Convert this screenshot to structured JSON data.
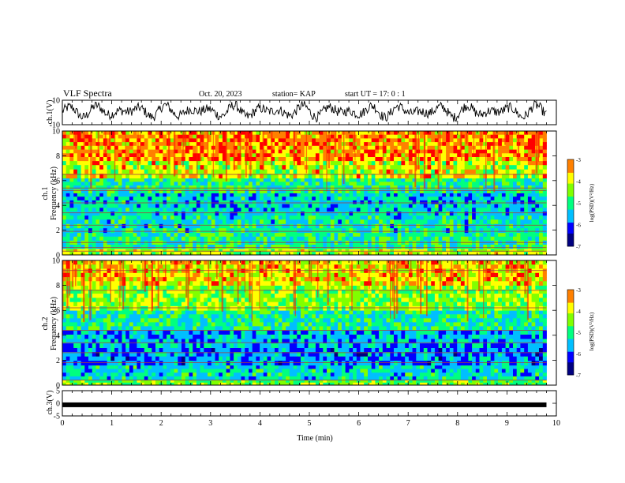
{
  "header": {
    "title": "VLF Spectra",
    "date": "Oct. 20, 2023",
    "station": "station= KAP",
    "start": "start  UT =   17: 0  : 1"
  },
  "colors": {
    "colormap": [
      "#000080",
      "#0000ff",
      "#00bfff",
      "#00ff80",
      "#80ff00",
      "#ffff00",
      "#ff8000",
      "#ff0000",
      "#ffffff"
    ]
  },
  "chart_data": [
    {
      "type": "line",
      "panel": "ch1",
      "ylabel": "ch.1(V)",
      "ylim": [
        -10,
        10
      ],
      "y_ticks": [
        "10",
        "-10"
      ],
      "xlim": [
        0,
        10
      ],
      "x_end": 9.8,
      "baseline": 0,
      "amplitude": 9,
      "series": [
        {
          "values": []
        }
      ]
    },
    {
      "type": "heatmap",
      "panel": "ch2_spectrogram",
      "title": "ch.1",
      "ylabel": "Frequency (kHz)",
      "ylim": [
        0,
        10
      ],
      "y_ticks": [
        "0",
        "2",
        "4",
        "6",
        "8",
        "10"
      ],
      "xlim": [
        0,
        10
      ],
      "x_end": 9.8,
      "colorbar": {
        "label": "log(PSD)(V²/Hz)",
        "range": [
          -7,
          -3
        ],
        "ticks": [
          "-3",
          "-4",
          "-5",
          "-6",
          "-7"
        ]
      },
      "bands": [
        {
          "f": [
            0,
            0.5
          ],
          "v": -4.2
        },
        {
          "f": [
            0.5,
            1.8
          ],
          "v": -5.0
        },
        {
          "f": [
            1.8,
            3.2
          ],
          "v": -5.2
        },
        {
          "f": [
            3.2,
            5.0
          ],
          "v": -5.4
        },
        {
          "f": [
            5.0,
            6.2
          ],
          "v": -5.0
        },
        {
          "f": [
            6.2,
            7.6
          ],
          "v": -4.3
        },
        {
          "f": [
            7.6,
            10
          ],
          "v": -3.6
        }
      ],
      "lines_khz": [
        0.3,
        0.6,
        1.0,
        1.9,
        2.4,
        3.4,
        4.2,
        5.2,
        5.4,
        6.5
      ]
    },
    {
      "type": "heatmap",
      "panel": "ch2_spectrogram_b",
      "title": "ch.2",
      "ylabel": "Frequency (kHz)",
      "ylim": [
        0,
        10
      ],
      "y_ticks": [
        "0",
        "2",
        "4",
        "6",
        "8",
        "10"
      ],
      "xlim": [
        0,
        10
      ],
      "x_end": 9.8,
      "colorbar": {
        "label": "log(PSD)(V²/Hz)",
        "range": [
          -7,
          -3
        ],
        "ticks": [
          "-3",
          "-4",
          "-5",
          "-6",
          "-7"
        ]
      },
      "bands": [
        {
          "f": [
            0,
            0.4
          ],
          "v": -4.5
        },
        {
          "f": [
            0.4,
            1.6
          ],
          "v": -5.3
        },
        {
          "f": [
            1.6,
            3.0
          ],
          "v": -5.8
        },
        {
          "f": [
            3.0,
            4.4
          ],
          "v": -5.6
        },
        {
          "f": [
            4.4,
            6.0
          ],
          "v": -5.1
        },
        {
          "f": [
            6.0,
            8.0
          ],
          "v": -4.4
        },
        {
          "f": [
            8.0,
            10
          ],
          "v": -4.0
        }
      ],
      "lines_khz": [
        0.4,
        1.8,
        2.6,
        3.4,
        4.4,
        6.2,
        7.6,
        9.2
      ]
    },
    {
      "type": "line",
      "panel": "ch3",
      "ylabel": "ch.3(V)",
      "ylim": [
        -5,
        5
      ],
      "y_ticks": [
        "5",
        "0",
        "-5"
      ],
      "xlim": [
        0,
        10
      ],
      "x_end": 9.8,
      "baseline": -0.6,
      "series": [
        {
          "values": []
        }
      ]
    }
  ],
  "xaxis": {
    "label": "Time  (min)",
    "ticks": [
      "0",
      "1",
      "2",
      "3",
      "4",
      "5",
      "6",
      "7",
      "8",
      "9",
      "10"
    ]
  }
}
